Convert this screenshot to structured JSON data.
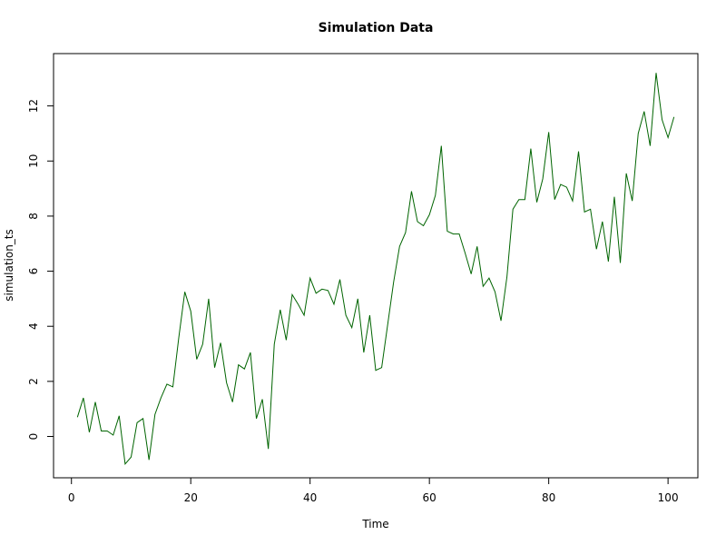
{
  "chart_data": {
    "type": "line",
    "title": "Simulation Data",
    "xlabel": "Time",
    "ylabel": "simulation_ts",
    "xlim": [
      -3,
      105
    ],
    "ylim": [
      -1.5,
      13.9
    ],
    "x_ticks": [
      0,
      20,
      40,
      60,
      80,
      100
    ],
    "x_tick_labels": [
      "0",
      "20",
      "40",
      "60",
      "80",
      "100"
    ],
    "y_ticks": [
      0,
      2,
      4,
      6,
      8,
      10,
      12
    ],
    "y_tick_labels": [
      "0",
      "2",
      "4",
      "6",
      "8",
      "10",
      "12"
    ],
    "grid": false,
    "series": [
      {
        "color": "#006400",
        "x": [
          1,
          2,
          3,
          4,
          5,
          6,
          7,
          8,
          9,
          10,
          11,
          12,
          13,
          14,
          15,
          16,
          17,
          18,
          19,
          20,
          21,
          22,
          23,
          24,
          25,
          26,
          27,
          28,
          29,
          30,
          31,
          32,
          33,
          34,
          35,
          36,
          37,
          38,
          39,
          40,
          41,
          42,
          43,
          44,
          45,
          46,
          47,
          48,
          49,
          50,
          51,
          52,
          53,
          54,
          55,
          56,
          57,
          58,
          59,
          60,
          61,
          62,
          63,
          64,
          65,
          66,
          67,
          68,
          69,
          70,
          71,
          72,
          73,
          74,
          75,
          76,
          77,
          78,
          79,
          80,
          81,
          82,
          83,
          84,
          85,
          86,
          87,
          88,
          89,
          90,
          91,
          92,
          93,
          94,
          95,
          96,
          97,
          98,
          99,
          100,
          101
        ],
        "y": [
          0.7,
          1.4,
          0.15,
          1.25,
          0.2,
          0.2,
          0.05,
          0.75,
          -1.0,
          -0.75,
          0.5,
          0.65,
          -0.85,
          0.8,
          1.4,
          1.9,
          1.8,
          3.6,
          5.25,
          4.55,
          2.8,
          3.35,
          5.0,
          2.5,
          3.4,
          1.95,
          1.25,
          2.6,
          2.45,
          3.05,
          0.65,
          1.35,
          -0.45,
          3.35,
          4.6,
          3.5,
          5.15,
          4.8,
          4.4,
          5.75,
          5.2,
          5.35,
          5.3,
          4.8,
          5.7,
          4.4,
          3.95,
          5.0,
          3.05,
          4.4,
          2.4,
          2.5,
          4.05,
          5.6,
          6.9,
          7.4,
          8.9,
          7.8,
          7.65,
          8.05,
          8.75,
          10.55,
          7.45,
          7.35,
          7.35,
          6.65,
          5.9,
          6.9,
          5.45,
          5.75,
          5.25,
          4.2,
          5.8,
          8.25,
          8.6,
          8.6,
          10.45,
          8.5,
          9.35,
          11.05,
          8.6,
          9.15,
          9.05,
          8.55,
          10.35,
          8.15,
          8.25,
          6.8,
          7.8,
          6.35,
          8.7,
          6.3,
          9.55,
          8.55,
          11.0,
          11.8,
          10.55,
          13.2,
          11.5,
          10.85,
          11.6
        ]
      }
    ]
  }
}
